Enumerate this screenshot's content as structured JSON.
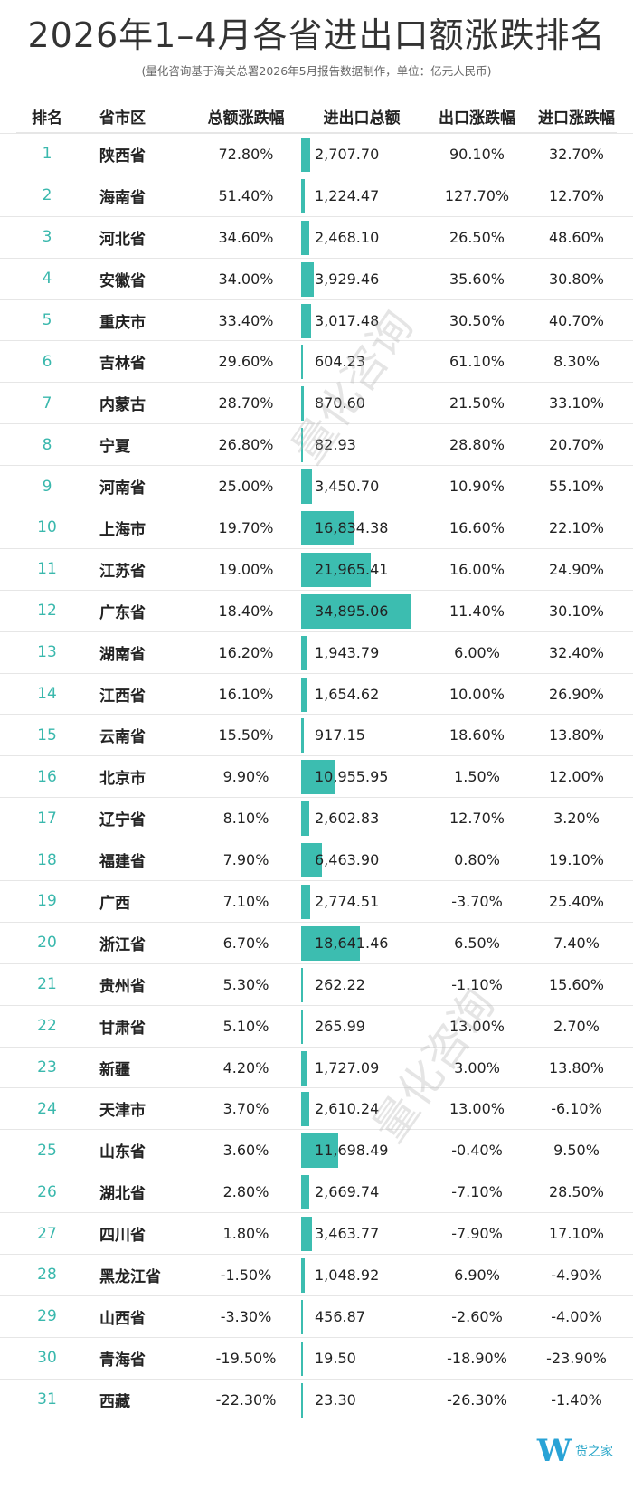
{
  "title": "2026年1–4月各省进出口额涨跌排名",
  "subtitle": "(量化咨询基于海关总署2026年5月报告数据制作，单位：亿元人民币)",
  "headers": {
    "rank": "排名",
    "province": "省市区",
    "total_change": "总额涨跌幅",
    "amount": "进出口总额",
    "export_change": "出口涨跌幅",
    "import_change": "进口涨跌幅"
  },
  "watermark": "量化咨询",
  "logo": {
    "mark": "W",
    "text": "货之家"
  },
  "colors": {
    "bar": "#3cbdb0",
    "rank": "#3ab8ad"
  },
  "bar_max_amount": 34895.06,
  "rows": [
    {
      "rank": "1",
      "province": "陕西省",
      "total": "72.80%",
      "amount": "2,707.70",
      "amount_value": 2707.7,
      "export": "90.10%",
      "import": "32.70%"
    },
    {
      "rank": "2",
      "province": "海南省",
      "total": "51.40%",
      "amount": "1,224.47",
      "amount_value": 1224.47,
      "export": "127.70%",
      "import": "12.70%"
    },
    {
      "rank": "3",
      "province": "河北省",
      "total": "34.60%",
      "amount": "2,468.10",
      "amount_value": 2468.1,
      "export": "26.50%",
      "import": "48.60%"
    },
    {
      "rank": "4",
      "province": "安徽省",
      "total": "34.00%",
      "amount": "3,929.46",
      "amount_value": 3929.46,
      "export": "35.60%",
      "import": "30.80%"
    },
    {
      "rank": "5",
      "province": "重庆市",
      "total": "33.40%",
      "amount": "3,017.48",
      "amount_value": 3017.48,
      "export": "30.50%",
      "import": "40.70%"
    },
    {
      "rank": "6",
      "province": "吉林省",
      "total": "29.60%",
      "amount": "604.23",
      "amount_value": 604.23,
      "export": "61.10%",
      "import": "8.30%"
    },
    {
      "rank": "7",
      "province": "内蒙古",
      "total": "28.70%",
      "amount": "870.60",
      "amount_value": 870.6,
      "export": "21.50%",
      "import": "33.10%"
    },
    {
      "rank": "8",
      "province": "宁夏",
      "total": "26.80%",
      "amount": "82.93",
      "amount_value": 82.93,
      "export": "28.80%",
      "import": "20.70%"
    },
    {
      "rank": "9",
      "province": "河南省",
      "total": "25.00%",
      "amount": "3,450.70",
      "amount_value": 3450.7,
      "export": "10.90%",
      "import": "55.10%"
    },
    {
      "rank": "10",
      "province": "上海市",
      "total": "19.70%",
      "amount": "16,834.38",
      "amount_value": 16834.38,
      "export": "16.60%",
      "import": "22.10%"
    },
    {
      "rank": "11",
      "province": "江苏省",
      "total": "19.00%",
      "amount": "21,965.41",
      "amount_value": 21965.41,
      "export": "16.00%",
      "import": "24.90%"
    },
    {
      "rank": "12",
      "province": "广东省",
      "total": "18.40%",
      "amount": "34,895.06",
      "amount_value": 34895.06,
      "export": "11.40%",
      "import": "30.10%"
    },
    {
      "rank": "13",
      "province": "湖南省",
      "total": "16.20%",
      "amount": "1,943.79",
      "amount_value": 1943.79,
      "export": "6.00%",
      "import": "32.40%"
    },
    {
      "rank": "14",
      "province": "江西省",
      "total": "16.10%",
      "amount": "1,654.62",
      "amount_value": 1654.62,
      "export": "10.00%",
      "import": "26.90%"
    },
    {
      "rank": "15",
      "province": "云南省",
      "total": "15.50%",
      "amount": "917.15",
      "amount_value": 917.15,
      "export": "18.60%",
      "import": "13.80%"
    },
    {
      "rank": "16",
      "province": "北京市",
      "total": "9.90%",
      "amount": "10,955.95",
      "amount_value": 10955.95,
      "export": "1.50%",
      "import": "12.00%"
    },
    {
      "rank": "17",
      "province": "辽宁省",
      "total": "8.10%",
      "amount": "2,602.83",
      "amount_value": 2602.83,
      "export": "12.70%",
      "import": "3.20%"
    },
    {
      "rank": "18",
      "province": "福建省",
      "total": "7.90%",
      "amount": "6,463.90",
      "amount_value": 6463.9,
      "export": "0.80%",
      "import": "19.10%"
    },
    {
      "rank": "19",
      "province": "广西",
      "total": "7.10%",
      "amount": "2,774.51",
      "amount_value": 2774.51,
      "export": "-3.70%",
      "import": "25.40%"
    },
    {
      "rank": "20",
      "province": "浙江省",
      "total": "6.70%",
      "amount": "18,641.46",
      "amount_value": 18641.46,
      "export": "6.50%",
      "import": "7.40%"
    },
    {
      "rank": "21",
      "province": "贵州省",
      "total": "5.30%",
      "amount": "262.22",
      "amount_value": 262.22,
      "export": "-1.10%",
      "import": "15.60%"
    },
    {
      "rank": "22",
      "province": "甘肃省",
      "total": "5.10%",
      "amount": "265.99",
      "amount_value": 265.99,
      "export": "13.00%",
      "import": "2.70%"
    },
    {
      "rank": "23",
      "province": "新疆",
      "total": "4.20%",
      "amount": "1,727.09",
      "amount_value": 1727.09,
      "export": "3.00%",
      "import": "13.80%"
    },
    {
      "rank": "24",
      "province": "天津市",
      "total": "3.70%",
      "amount": "2,610.24",
      "amount_value": 2610.24,
      "export": "13.00%",
      "import": "-6.10%"
    },
    {
      "rank": "25",
      "province": "山东省",
      "total": "3.60%",
      "amount": "11,698.49",
      "amount_value": 11698.49,
      "export": "-0.40%",
      "import": "9.50%"
    },
    {
      "rank": "26",
      "province": "湖北省",
      "total": "2.80%",
      "amount": "2,669.74",
      "amount_value": 2669.74,
      "export": "-7.10%",
      "import": "28.50%"
    },
    {
      "rank": "27",
      "province": "四川省",
      "total": "1.80%",
      "amount": "3,463.77",
      "amount_value": 3463.77,
      "export": "-7.90%",
      "import": "17.10%"
    },
    {
      "rank": "28",
      "province": "黑龙江省",
      "total": "-1.50%",
      "amount": "1,048.92",
      "amount_value": 1048.92,
      "export": "6.90%",
      "import": "-4.90%"
    },
    {
      "rank": "29",
      "province": "山西省",
      "total": "-3.30%",
      "amount": "456.87",
      "amount_value": 456.87,
      "export": "-2.60%",
      "import": "-4.00%"
    },
    {
      "rank": "30",
      "province": "青海省",
      "total": "-19.50%",
      "amount": "19.50",
      "amount_value": 19.5,
      "export": "-18.90%",
      "import": "-23.90%"
    },
    {
      "rank": "31",
      "province": "西藏",
      "total": "-22.30%",
      "amount": "23.30",
      "amount_value": 23.3,
      "export": "-26.30%",
      "import": "-1.40%"
    }
  ]
}
